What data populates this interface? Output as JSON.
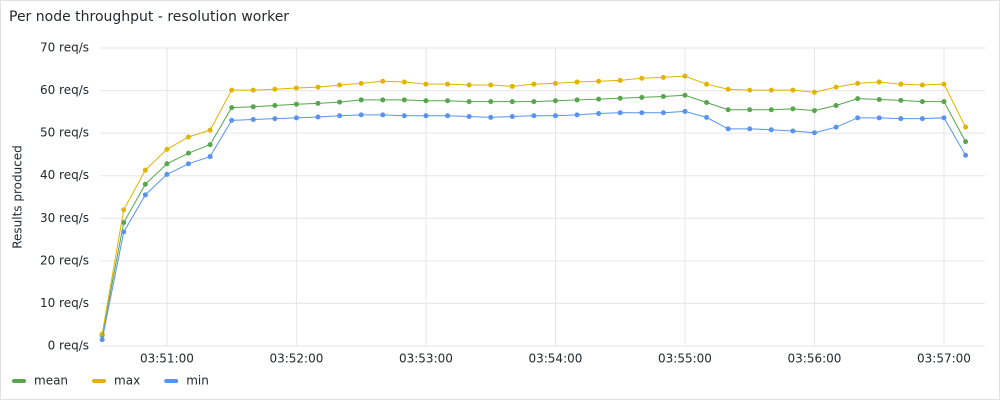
{
  "chart_data": {
    "type": "line",
    "title": "Per node throughput - resolution worker",
    "y_label": "Results produced",
    "x": [
      "03:50:30",
      "03:50:40",
      "03:50:50",
      "03:51:00",
      "03:51:10",
      "03:51:20",
      "03:51:30",
      "03:51:40",
      "03:51:50",
      "03:52:00",
      "03:52:10",
      "03:52:20",
      "03:52:30",
      "03:52:40",
      "03:52:50",
      "03:53:00",
      "03:53:10",
      "03:53:20",
      "03:53:30",
      "03:53:40",
      "03:53:50",
      "03:54:00",
      "03:54:10",
      "03:54:20",
      "03:54:30",
      "03:54:40",
      "03:54:50",
      "03:55:00",
      "03:55:10",
      "03:55:20",
      "03:55:30",
      "03:55:40",
      "03:55:50",
      "03:56:00",
      "03:56:10",
      "03:56:20",
      "03:56:30",
      "03:56:40",
      "03:56:50",
      "03:57:00",
      "03:57:10"
    ],
    "series": [
      {
        "name": "mean",
        "color": "#56a64b",
        "values": [
          2.5,
          29,
          38,
          42.8,
          45.3,
          47.3,
          56,
          56.2,
          56.5,
          56.8,
          57,
          57.3,
          57.8,
          57.8,
          57.8,
          57.6,
          57.6,
          57.4,
          57.4,
          57.4,
          57.4,
          57.6,
          57.8,
          58,
          58.2,
          58.4,
          58.6,
          58.9,
          57.2,
          55.5,
          55.5,
          55.5,
          55.7,
          55.3,
          56.5,
          58.1,
          57.9,
          57.7,
          57.4,
          57.4,
          48
        ]
      },
      {
        "name": "max",
        "color": "#e0b400",
        "values": [
          2.8,
          32,
          41.3,
          46.2,
          49.1,
          50.7,
          60.1,
          60.1,
          60.3,
          60.6,
          60.8,
          61.3,
          61.7,
          62.2,
          62,
          61.5,
          61.5,
          61.3,
          61.3,
          61,
          61.5,
          61.7,
          62,
          62.2,
          62.4,
          62.9,
          63.1,
          63.4,
          61.5,
          60.3,
          60.1,
          60.1,
          60.1,
          59.6,
          60.8,
          61.7,
          62,
          61.5,
          61.3,
          61.5,
          51.4
        ]
      },
      {
        "name": "min",
        "color": "#5794f2",
        "values": [
          1.5,
          26.8,
          35.5,
          40.3,
          42.8,
          44.5,
          53,
          53.2,
          53.4,
          53.6,
          53.8,
          54.1,
          54.3,
          54.3,
          54.1,
          54.1,
          54.1,
          53.9,
          53.7,
          53.9,
          54.1,
          54.1,
          54.3,
          54.6,
          54.8,
          54.8,
          54.8,
          55.1,
          53.7,
          51,
          51,
          50.8,
          50.5,
          50.1,
          51.4,
          53.6,
          53.6,
          53.4,
          53.4,
          53.6,
          44.8
        ]
      }
    ],
    "xlim": [
      "03:50:29",
      "03:57:19"
    ],
    "xticks": [
      "03:51:00",
      "03:52:00",
      "03:53:00",
      "03:54:00",
      "03:55:00",
      "03:56:00",
      "03:57:00"
    ],
    "ylim": [
      0,
      70
    ],
    "yticks": [
      {
        "value": 0,
        "label": "0 req/s"
      },
      {
        "value": 10,
        "label": "10 req/s"
      },
      {
        "value": 20,
        "label": "20 req/s"
      },
      {
        "value": 30,
        "label": "30 req/s"
      },
      {
        "value": 40,
        "label": "40 req/s"
      },
      {
        "value": 50,
        "label": "50 req/s"
      },
      {
        "value": 60,
        "label": "60 req/s"
      },
      {
        "value": 70,
        "label": "70 req/s"
      }
    ],
    "grid": true,
    "legend": "bottom-left"
  }
}
